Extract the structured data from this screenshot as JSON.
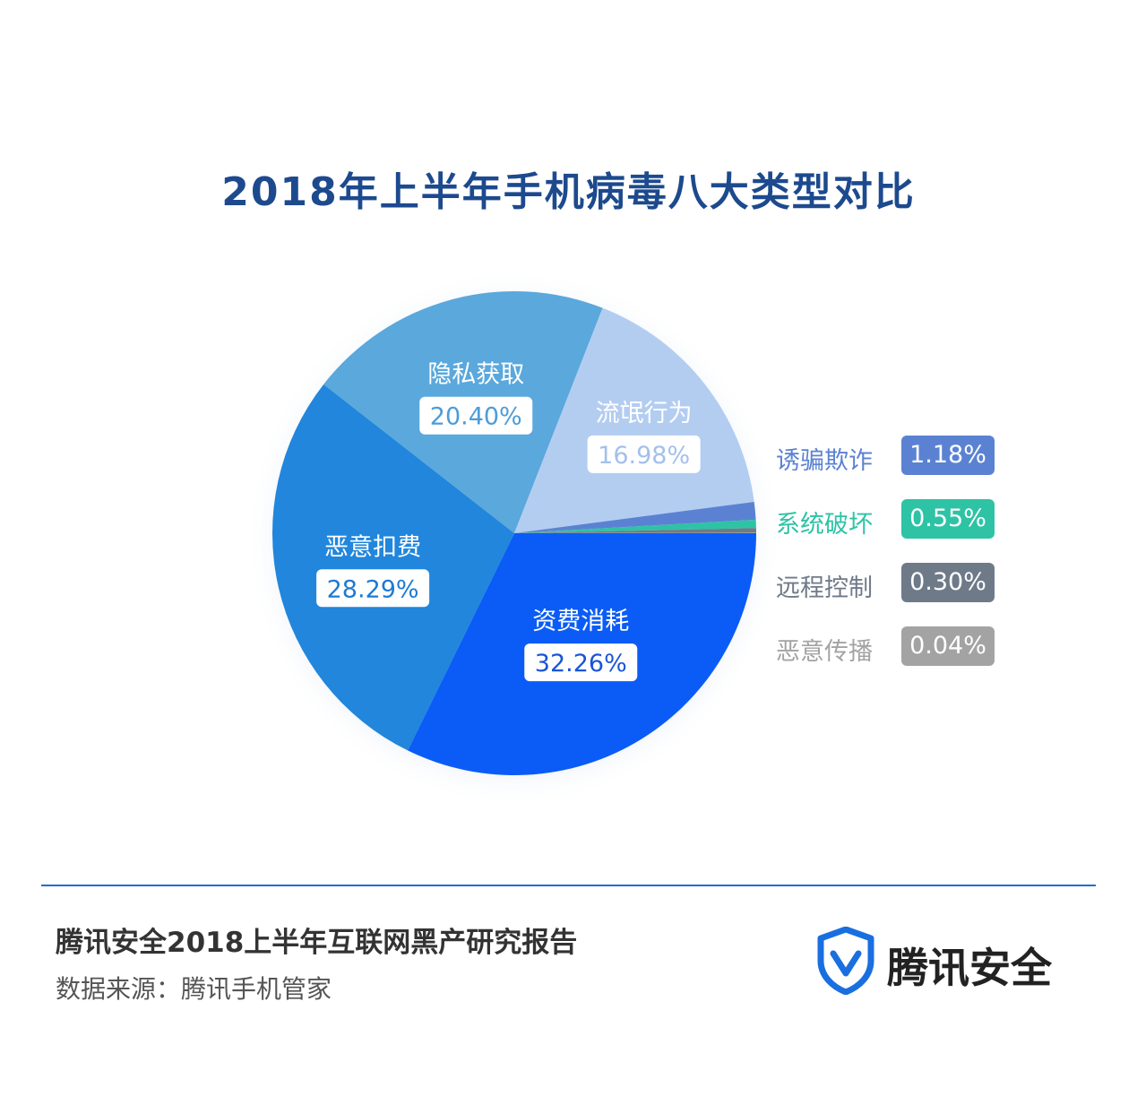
{
  "title": "2018年上半年手机病毒八大类型对比",
  "chart_data": {
    "type": "pie",
    "title": "2018年上半年手机病毒八大类型对比",
    "slices": [
      {
        "label": "资费消耗",
        "value": 32.26,
        "display": "32.26%",
        "color": "#0b5cf6",
        "text_color": "#1a55d6"
      },
      {
        "label": "恶意扣费",
        "value": 28.29,
        "display": "28.29%",
        "color": "#2186dc",
        "text_color": "#1b7bd4"
      },
      {
        "label": "隐私获取",
        "value": 20.4,
        "display": "20.40%",
        "color": "#5aa8dc",
        "text_color": "#4c9cd8"
      },
      {
        "label": "流氓行为",
        "value": 16.98,
        "display": "16.98%",
        "color": "#b3cdf1",
        "text_color": "#a3c0ec"
      },
      {
        "label": "诱骗欺诈",
        "value": 1.18,
        "display": "1.18%",
        "color": "#5b82d2",
        "text_color": "#5b82d2"
      },
      {
        "label": "系统破坏",
        "value": 0.55,
        "display": "0.55%",
        "color": "#2ec3a5",
        "text_color": "#2ec3a5"
      },
      {
        "label": "远程控制",
        "value": 0.3,
        "display": "0.30%",
        "color": "#6f7a89",
        "text_color": "#6f7a89"
      },
      {
        "label": "恶意传播",
        "value": 0.04,
        "display": "0.04%",
        "color": "#a3a3a3",
        "text_color": "#a3a3a3"
      }
    ]
  },
  "legend": [
    {
      "label": "诱骗欺诈",
      "value": "1.18%",
      "color": "#5b82d2"
    },
    {
      "label": "系统破坏",
      "value": "0.55%",
      "color": "#2ec3a5"
    },
    {
      "label": "远程控制",
      "value": "0.30%",
      "color": "#6f7a89"
    },
    {
      "label": "恶意传播",
      "value": "0.04%",
      "color": "#a3a3a3"
    }
  ],
  "footer": {
    "report_title": "腾讯安全2018上半年互联网黑产研究报告",
    "data_source": "数据来源：腾讯手机管家",
    "brand_name": "腾讯安全"
  }
}
